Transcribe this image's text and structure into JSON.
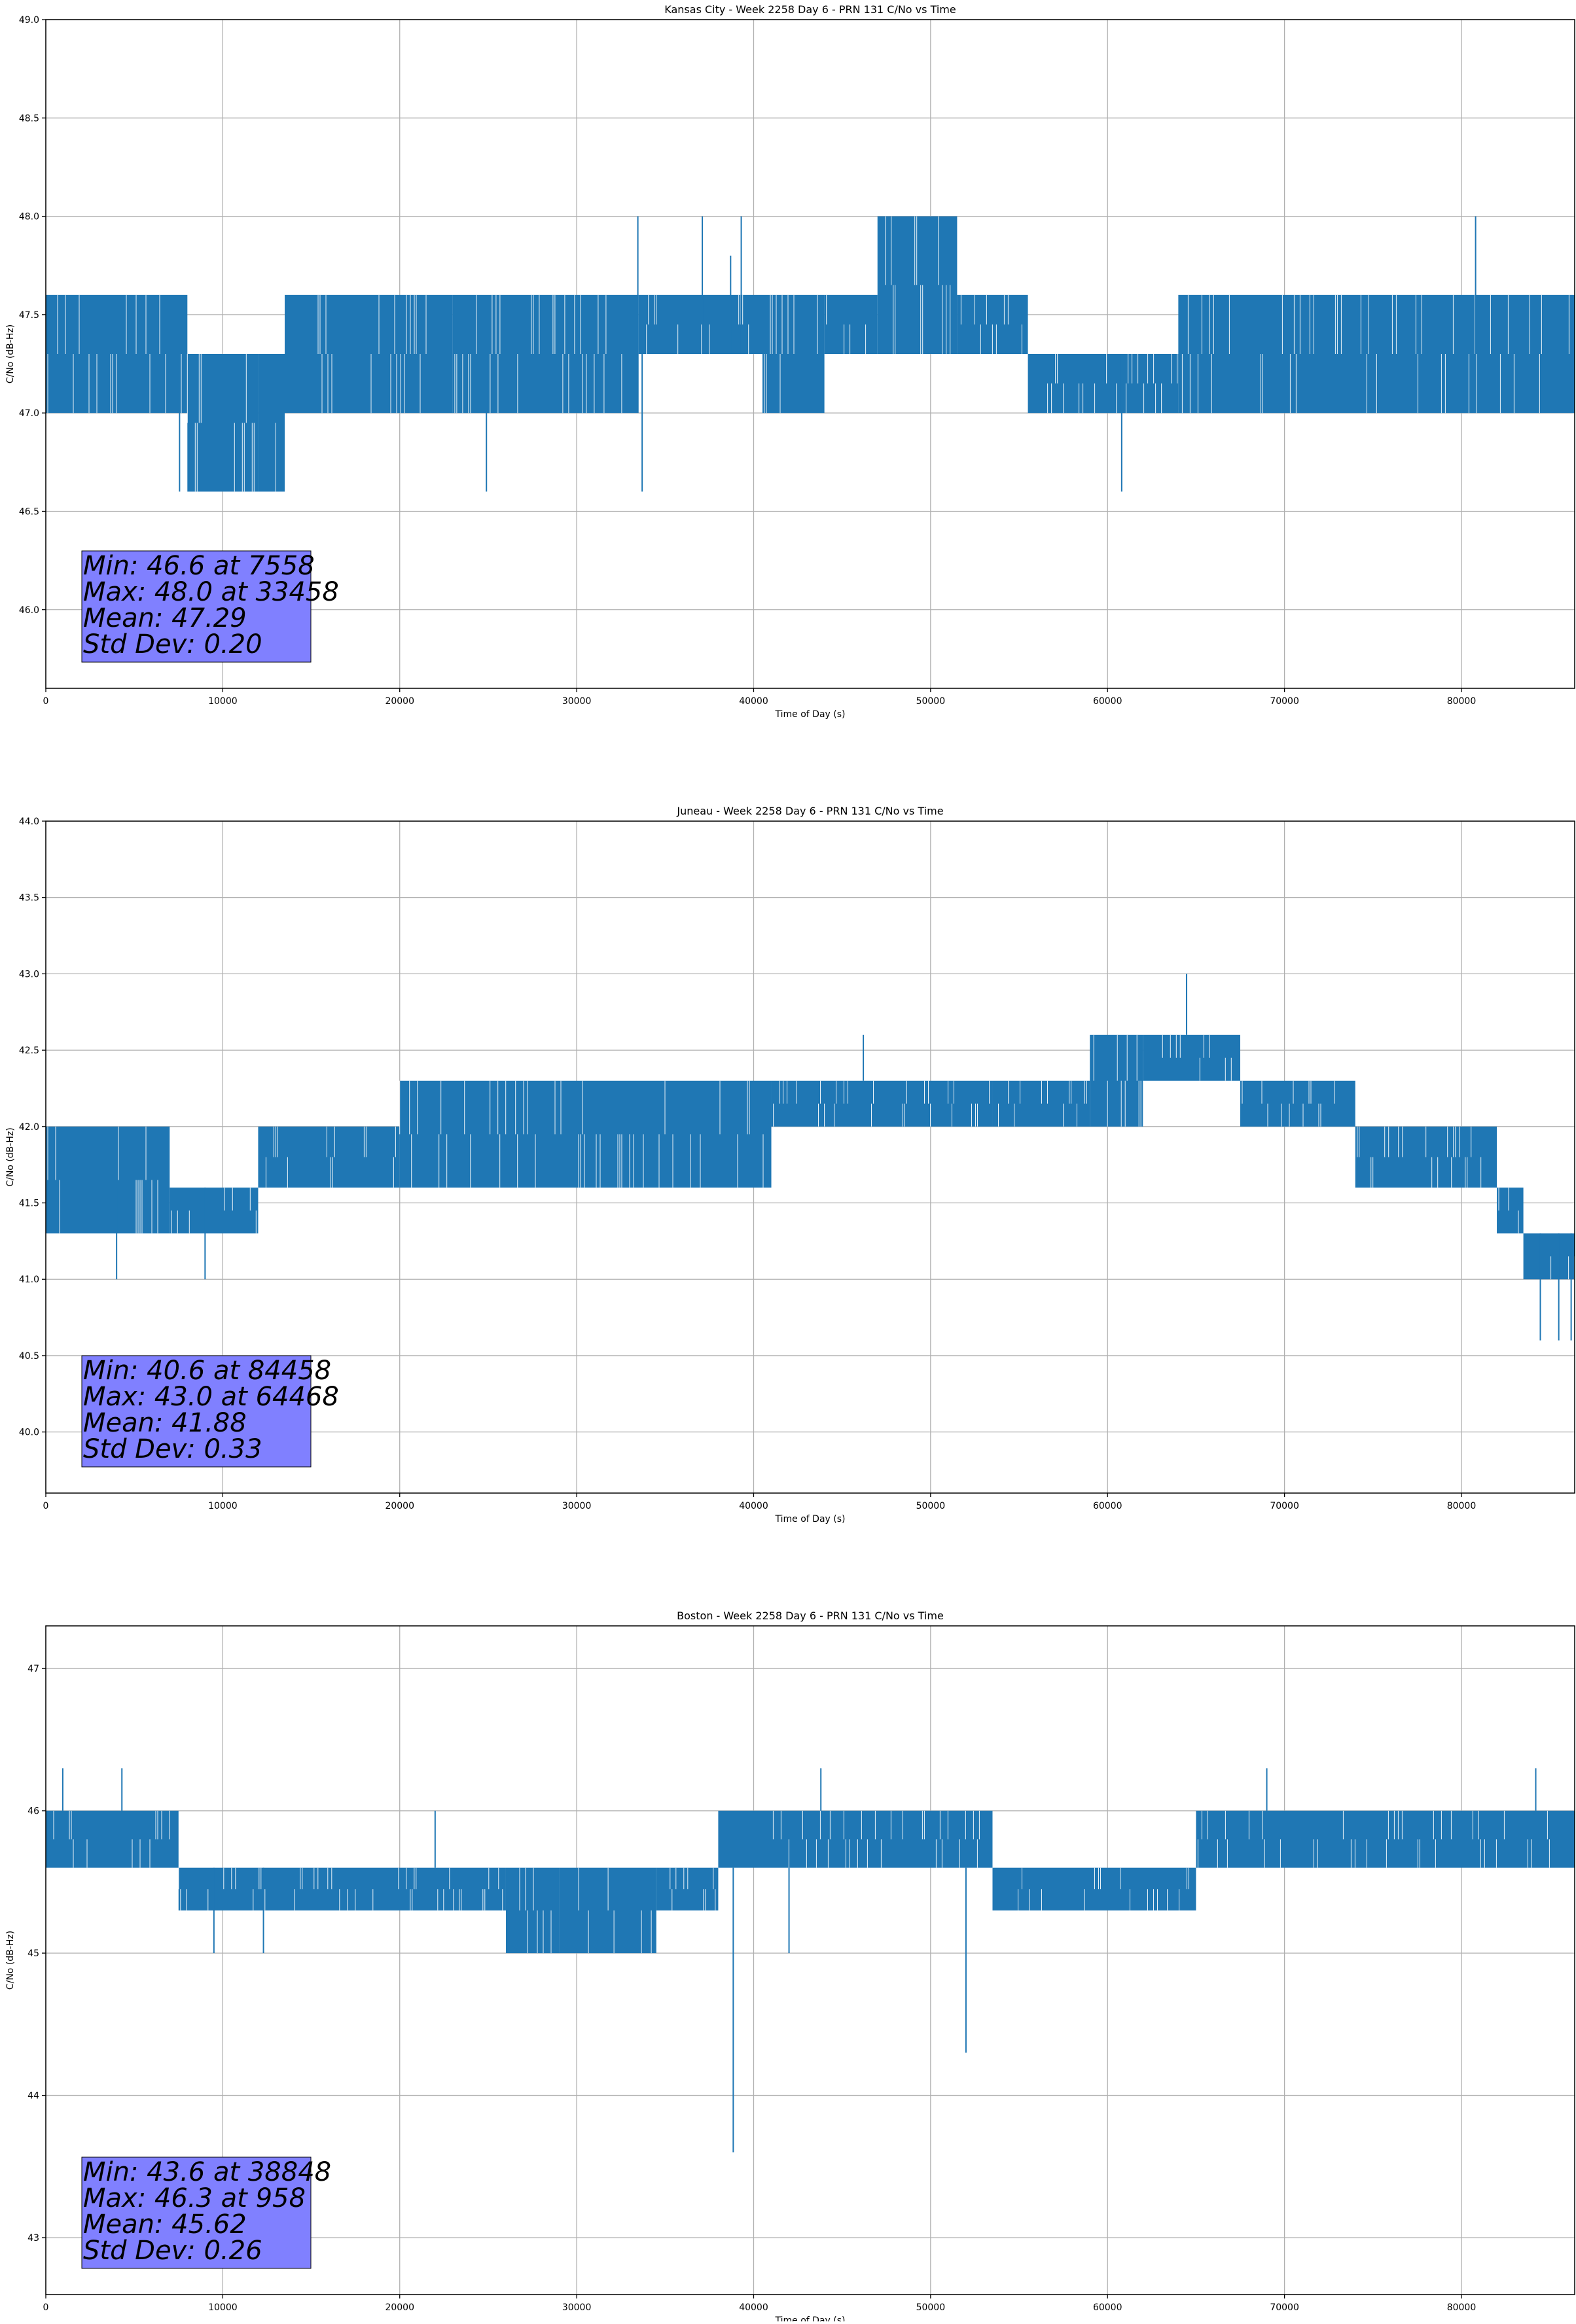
{
  "chart_data": [
    {
      "type": "line",
      "title": "Kansas City - Week 2258 Day 6 - PRN 131 C/No vs Time",
      "xlabel": "Time of Day (s)",
      "ylabel": "C/No (dB-Hz)",
      "xlim": [
        0,
        86400
      ],
      "ylim": [
        45.6,
        49.0
      ],
      "xticks": [
        0,
        10000,
        20000,
        30000,
        40000,
        50000,
        60000,
        70000,
        80000
      ],
      "xtick_labels": [
        "0",
        "10000",
        "20000",
        "30000",
        "40000",
        "50000",
        "60000",
        "70000",
        "80000"
      ],
      "yticks": [
        46.0,
        46.5,
        47.0,
        47.5,
        48.0,
        48.5,
        49.0
      ],
      "ytick_labels": [
        "46.0",
        "46.5",
        "47.0",
        "47.5",
        "48.0",
        "48.5",
        "49.0"
      ],
      "grid": true,
      "color": "#1f77b4",
      "series": [
        {
          "name": "C/No",
          "segments": [
            {
              "x": [
                0,
                8000
              ],
              "low": 47.0,
              "high": 47.6
            },
            {
              "x": [
                8000,
                12000
              ],
              "low": 46.6,
              "high": 47.3
            },
            {
              "x": [
                12000,
                13500
              ],
              "low": 46.6,
              "high": 47.3
            },
            {
              "x": [
                13500,
                23000
              ],
              "low": 47.0,
              "high": 47.6
            },
            {
              "x": [
                23000,
                33500
              ],
              "low": 47.0,
              "high": 47.6
            },
            {
              "x": [
                33500,
                40500
              ],
              "low": 47.3,
              "high": 47.6
            },
            {
              "x": [
                40500,
                44000
              ],
              "low": 47.0,
              "high": 47.6
            },
            {
              "x": [
                44000,
                47000
              ],
              "low": 47.3,
              "high": 47.6
            },
            {
              "x": [
                47000,
                51500
              ],
              "low": 47.3,
              "high": 48.0
            },
            {
              "x": [
                51500,
                55500
              ],
              "low": 47.3,
              "high": 47.6
            },
            {
              "x": [
                55500,
                64000
              ],
              "low": 47.0,
              "high": 47.3
            },
            {
              "x": [
                64000,
                86400
              ],
              "low": 47.0,
              "high": 47.6
            }
          ],
          "spikes": [
            {
              "x": 7558,
              "low": 46.6,
              "high": 47.3
            },
            {
              "x": 24900,
              "low": 46.6,
              "high": 47.3
            },
            {
              "x": 33458,
              "low": 47.3,
              "high": 48.0
            },
            {
              "x": 33700,
              "low": 46.6,
              "high": 47.3
            },
            {
              "x": 37100,
              "low": 47.3,
              "high": 48.0
            },
            {
              "x": 38700,
              "low": 47.3,
              "high": 47.8
            },
            {
              "x": 39300,
              "low": 47.3,
              "high": 48.0
            },
            {
              "x": 60800,
              "low": 46.6,
              "high": 47.3
            },
            {
              "x": 80800,
              "low": 47.3,
              "high": 48.0
            }
          ]
        }
      ],
      "annotations": [
        {
          "text": "Min: 46.6 at 7558"
        },
        {
          "text": "Max: 48.0 at 33458"
        },
        {
          "text": "Mean: 47.29"
        },
        {
          "text": "Std Dev: 0.20"
        }
      ],
      "annotation_box_color": "#8080ff"
    },
    {
      "type": "line",
      "title": "Juneau - Week 2258 Day 6 - PRN 131 C/No vs Time",
      "xlabel": "Time of Day (s)",
      "ylabel": "C/No (dB-Hz)",
      "xlim": [
        0,
        86400
      ],
      "ylim": [
        39.6,
        44.0
      ],
      "xticks": [
        0,
        10000,
        20000,
        30000,
        40000,
        50000,
        60000,
        70000,
        80000
      ],
      "xtick_labels": [
        "0",
        "10000",
        "20000",
        "30000",
        "40000",
        "50000",
        "60000",
        "70000",
        "80000"
      ],
      "yticks": [
        40.0,
        40.5,
        41.0,
        41.5,
        42.0,
        42.5,
        43.0,
        43.5,
        44.0
      ],
      "ytick_labels": [
        "40.0",
        "40.5",
        "41.0",
        "41.5",
        "42.0",
        "42.5",
        "43.0",
        "43.5",
        "44.0"
      ],
      "grid": true,
      "color": "#1f77b4",
      "series": [
        {
          "name": "C/No",
          "segments": [
            {
              "x": [
                0,
                7000
              ],
              "low": 41.3,
              "high": 42.0
            },
            {
              "x": [
                7000,
                12000
              ],
              "low": 41.3,
              "high": 41.6
            },
            {
              "x": [
                12000,
                20000
              ],
              "low": 41.6,
              "high": 42.0
            },
            {
              "x": [
                20000,
                27000
              ],
              "low": 41.6,
              "high": 42.3
            },
            {
              "x": [
                27000,
                41000
              ],
              "low": 41.6,
              "high": 42.3
            },
            {
              "x": [
                41000,
                53500
              ],
              "low": 42.0,
              "high": 42.3
            },
            {
              "x": [
                53500,
                59000
              ],
              "low": 42.0,
              "high": 42.3
            },
            {
              "x": [
                59000,
                62000
              ],
              "low": 42.0,
              "high": 42.6
            },
            {
              "x": [
                62000,
                67500
              ],
              "low": 42.3,
              "high": 42.6
            },
            {
              "x": [
                67500,
                74000
              ],
              "low": 42.0,
              "high": 42.3
            },
            {
              "x": [
                74000,
                82000
              ],
              "low": 41.6,
              "high": 42.0
            },
            {
              "x": [
                82000,
                83500
              ],
              "low": 41.3,
              "high": 41.6
            },
            {
              "x": [
                83500,
                86400
              ],
              "low": 41.0,
              "high": 41.3
            }
          ],
          "spikes": [
            {
              "x": 4000,
              "low": 41.0,
              "high": 41.6
            },
            {
              "x": 9000,
              "low": 41.0,
              "high": 41.6
            },
            {
              "x": 46200,
              "low": 42.3,
              "high": 42.6
            },
            {
              "x": 64468,
              "low": 42.6,
              "high": 43.0
            },
            {
              "x": 84458,
              "low": 40.6,
              "high": 41.3
            },
            {
              "x": 85500,
              "low": 40.6,
              "high": 41.3
            },
            {
              "x": 86200,
              "low": 40.6,
              "high": 41.3
            }
          ]
        }
      ],
      "annotations": [
        {
          "text": "Min: 40.6 at 84458"
        },
        {
          "text": "Max: 43.0 at 64468"
        },
        {
          "text": "Mean: 41.88"
        },
        {
          "text": "Std Dev: 0.33"
        }
      ],
      "annotation_box_color": "#8080ff"
    },
    {
      "type": "line",
      "title": "Boston - Week 2258 Day 6 - PRN 131 C/No vs Time",
      "xlabel": "Time of Day (s)",
      "ylabel": "C/No (dB-Hz)",
      "xlim": [
        0,
        86400
      ],
      "ylim": [
        42.6,
        47.3
      ],
      "xticks": [
        0,
        10000,
        20000,
        30000,
        40000,
        50000,
        60000,
        70000,
        80000
      ],
      "xtick_labels": [
        "0",
        "10000",
        "20000",
        "30000",
        "40000",
        "50000",
        "60000",
        "70000",
        "80000"
      ],
      "yticks": [
        43,
        44,
        45,
        46,
        47
      ],
      "ytick_labels": [
        "43",
        "44",
        "45",
        "46",
        "47"
      ],
      "grid": true,
      "color": "#1f77b4",
      "series": [
        {
          "name": "C/No",
          "segments": [
            {
              "x": [
                0,
                7500
              ],
              "low": 45.6,
              "high": 46.0
            },
            {
              "x": [
                7500,
                26000
              ],
              "low": 45.3,
              "high": 45.6
            },
            {
              "x": [
                26000,
                29000
              ],
              "low": 45.0,
              "high": 45.6
            },
            {
              "x": [
                29000,
                34500
              ],
              "low": 45.0,
              "high": 45.6
            },
            {
              "x": [
                34500,
                38000
              ],
              "low": 45.3,
              "high": 45.6
            },
            {
              "x": [
                38000,
                53500
              ],
              "low": 45.6,
              "high": 46.0
            },
            {
              "x": [
                53500,
                65000
              ],
              "low": 45.3,
              "high": 45.6
            },
            {
              "x": [
                65000,
                86400
              ],
              "low": 45.6,
              "high": 46.0
            }
          ],
          "spikes": [
            {
              "x": 958,
              "low": 46.0,
              "high": 46.3
            },
            {
              "x": 4300,
              "low": 46.0,
              "high": 46.3
            },
            {
              "x": 9500,
              "low": 45.0,
              "high": 45.6
            },
            {
              "x": 12300,
              "low": 45.0,
              "high": 45.6
            },
            {
              "x": 22000,
              "low": 45.6,
              "high": 46.0
            },
            {
              "x": 38848,
              "low": 43.6,
              "high": 45.6
            },
            {
              "x": 42000,
              "low": 45.0,
              "high": 45.6
            },
            {
              "x": 43800,
              "low": 46.0,
              "high": 46.3
            },
            {
              "x": 52000,
              "low": 44.3,
              "high": 45.6
            },
            {
              "x": 69000,
              "low": 46.0,
              "high": 46.3
            },
            {
              "x": 84200,
              "low": 46.0,
              "high": 46.3
            }
          ]
        }
      ],
      "annotations": [
        {
          "text": "Min: 43.6 at 38848"
        },
        {
          "text": "Max: 46.3 at 958"
        },
        {
          "text": "Mean: 45.62"
        },
        {
          "text": "Std Dev: 0.26"
        }
      ],
      "annotation_box_color": "#8080ff"
    }
  ]
}
